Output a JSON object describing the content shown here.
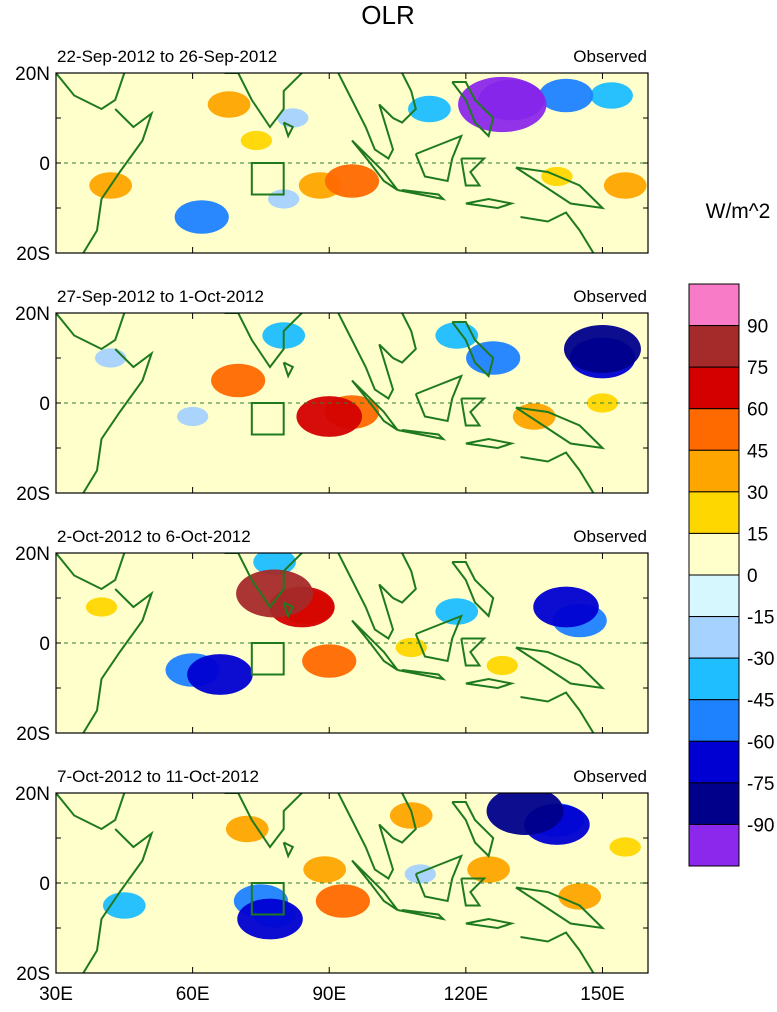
{
  "title": "OLR",
  "units": "W/m^2",
  "chart_data": {
    "type": "heatmap",
    "title": "OLR",
    "units": "W/m^2",
    "x_ticks": [
      "30E",
      "60E",
      "90E",
      "120E",
      "150E"
    ],
    "x_tick_values": [
      30,
      60,
      90,
      120,
      150
    ],
    "xlim": [
      30,
      160
    ],
    "y_ticks": [
      "20N",
      "0",
      "20S"
    ],
    "y_tick_values": [
      20,
      0,
      -20
    ],
    "ylim": [
      -20,
      20
    ],
    "box_region": {
      "lon": [
        73,
        80
      ],
      "lat": [
        -7,
        0
      ]
    },
    "colorbar": {
      "labels": [
        "90",
        "75",
        "60",
        "45",
        "30",
        "15",
        "0",
        "-15",
        "-30",
        "-45",
        "-60",
        "-75",
        "-90"
      ],
      "colors": [
        "#f77bc6",
        "#a52a2a",
        "#d40000",
        "#ff6a00",
        "#ffa500",
        "#ffd700",
        "#ffffcc",
        "#d7f7ff",
        "#a6d2ff",
        "#1ebeff",
        "#1e82ff",
        "#0000d2",
        "#00008b",
        "#8c28eb"
      ]
    },
    "panels": [
      {
        "label": "22-Sep-2012 to 26-Sep-2012",
        "tag": "Observed",
        "features": [
          {
            "lon": 128,
            "lat": 13,
            "value": -90
          },
          {
            "lon": 130,
            "lat": 14,
            "value": -60
          },
          {
            "lon": 142,
            "lat": 15,
            "value": -45
          },
          {
            "lon": 152,
            "lat": 15,
            "value": -30
          },
          {
            "lon": 112,
            "lat": 12,
            "value": -30
          },
          {
            "lon": 82,
            "lat": 10,
            "value": -15
          },
          {
            "lon": 68,
            "lat": 13,
            "value": 30
          },
          {
            "lon": 74,
            "lat": 5,
            "value": 15
          },
          {
            "lon": 95,
            "lat": -4,
            "value": 45
          },
          {
            "lon": 88,
            "lat": -5,
            "value": 30
          },
          {
            "lon": 42,
            "lat": -5,
            "value": 30
          },
          {
            "lon": 62,
            "lat": -12,
            "value": -45
          },
          {
            "lon": 80,
            "lat": -8,
            "value": -15
          },
          {
            "lon": 140,
            "lat": -3,
            "value": 15
          },
          {
            "lon": 155,
            "lat": -5,
            "value": 30
          }
        ]
      },
      {
        "label": "27-Sep-2012 to 1-Oct-2012",
        "tag": "Observed",
        "features": [
          {
            "lon": 150,
            "lat": 12,
            "value": -75
          },
          {
            "lon": 150,
            "lat": 10,
            "value": -60
          },
          {
            "lon": 126,
            "lat": 10,
            "value": -45
          },
          {
            "lon": 118,
            "lat": 15,
            "value": -30
          },
          {
            "lon": 80,
            "lat": 15,
            "value": -30
          },
          {
            "lon": 70,
            "lat": 5,
            "value": 45
          },
          {
            "lon": 90,
            "lat": -3,
            "value": 60
          },
          {
            "lon": 95,
            "lat": -2,
            "value": 45
          },
          {
            "lon": 135,
            "lat": -3,
            "value": 30
          },
          {
            "lon": 150,
            "lat": 0,
            "value": 15
          },
          {
            "lon": 42,
            "lat": 10,
            "value": -15
          },
          {
            "lon": 60,
            "lat": -3,
            "value": -15
          }
        ]
      },
      {
        "label": "2-Oct-2012 to 6-Oct-2012",
        "tag": "Observed",
        "features": [
          {
            "lon": 84,
            "lat": 8,
            "value": 60
          },
          {
            "lon": 85,
            "lat": 8,
            "value": 45
          },
          {
            "lon": 78,
            "lat": 11,
            "value": 75
          },
          {
            "lon": 90,
            "lat": -4,
            "value": 45
          },
          {
            "lon": 66,
            "lat": -7,
            "value": -60
          },
          {
            "lon": 60,
            "lat": -6,
            "value": -45
          },
          {
            "lon": 142,
            "lat": 8,
            "value": -60
          },
          {
            "lon": 145,
            "lat": 5,
            "value": -45
          },
          {
            "lon": 118,
            "lat": 7,
            "value": -30
          },
          {
            "lon": 78,
            "lat": 18,
            "value": -30
          },
          {
            "lon": 108,
            "lat": -1,
            "value": 15
          },
          {
            "lon": 128,
            "lat": -5,
            "value": 15
          },
          {
            "lon": 40,
            "lat": 8,
            "value": 15
          }
        ]
      },
      {
        "label": "7-Oct-2012 to 11-Oct-2012",
        "tag": "Observed",
        "features": [
          {
            "lon": 133,
            "lat": 16,
            "value": -75
          },
          {
            "lon": 140,
            "lat": 13,
            "value": -60
          },
          {
            "lon": 140,
            "lat": 14,
            "value": -45
          },
          {
            "lon": 75,
            "lat": -4,
            "value": -45
          },
          {
            "lon": 77,
            "lat": -8,
            "value": -60
          },
          {
            "lon": 78,
            "lat": -7,
            "value": -30
          },
          {
            "lon": 93,
            "lat": -4,
            "value": 45
          },
          {
            "lon": 89,
            "lat": 3,
            "value": 30
          },
          {
            "lon": 108,
            "lat": 15,
            "value": 30
          },
          {
            "lon": 125,
            "lat": 3,
            "value": 30
          },
          {
            "lon": 145,
            "lat": -3,
            "value": 30
          },
          {
            "lon": 72,
            "lat": 12,
            "value": 30
          },
          {
            "lon": 45,
            "lat": -5,
            "value": -30
          },
          {
            "lon": 110,
            "lat": 2,
            "value": -15
          },
          {
            "lon": 155,
            "lat": 8,
            "value": 15
          }
        ]
      }
    ]
  }
}
